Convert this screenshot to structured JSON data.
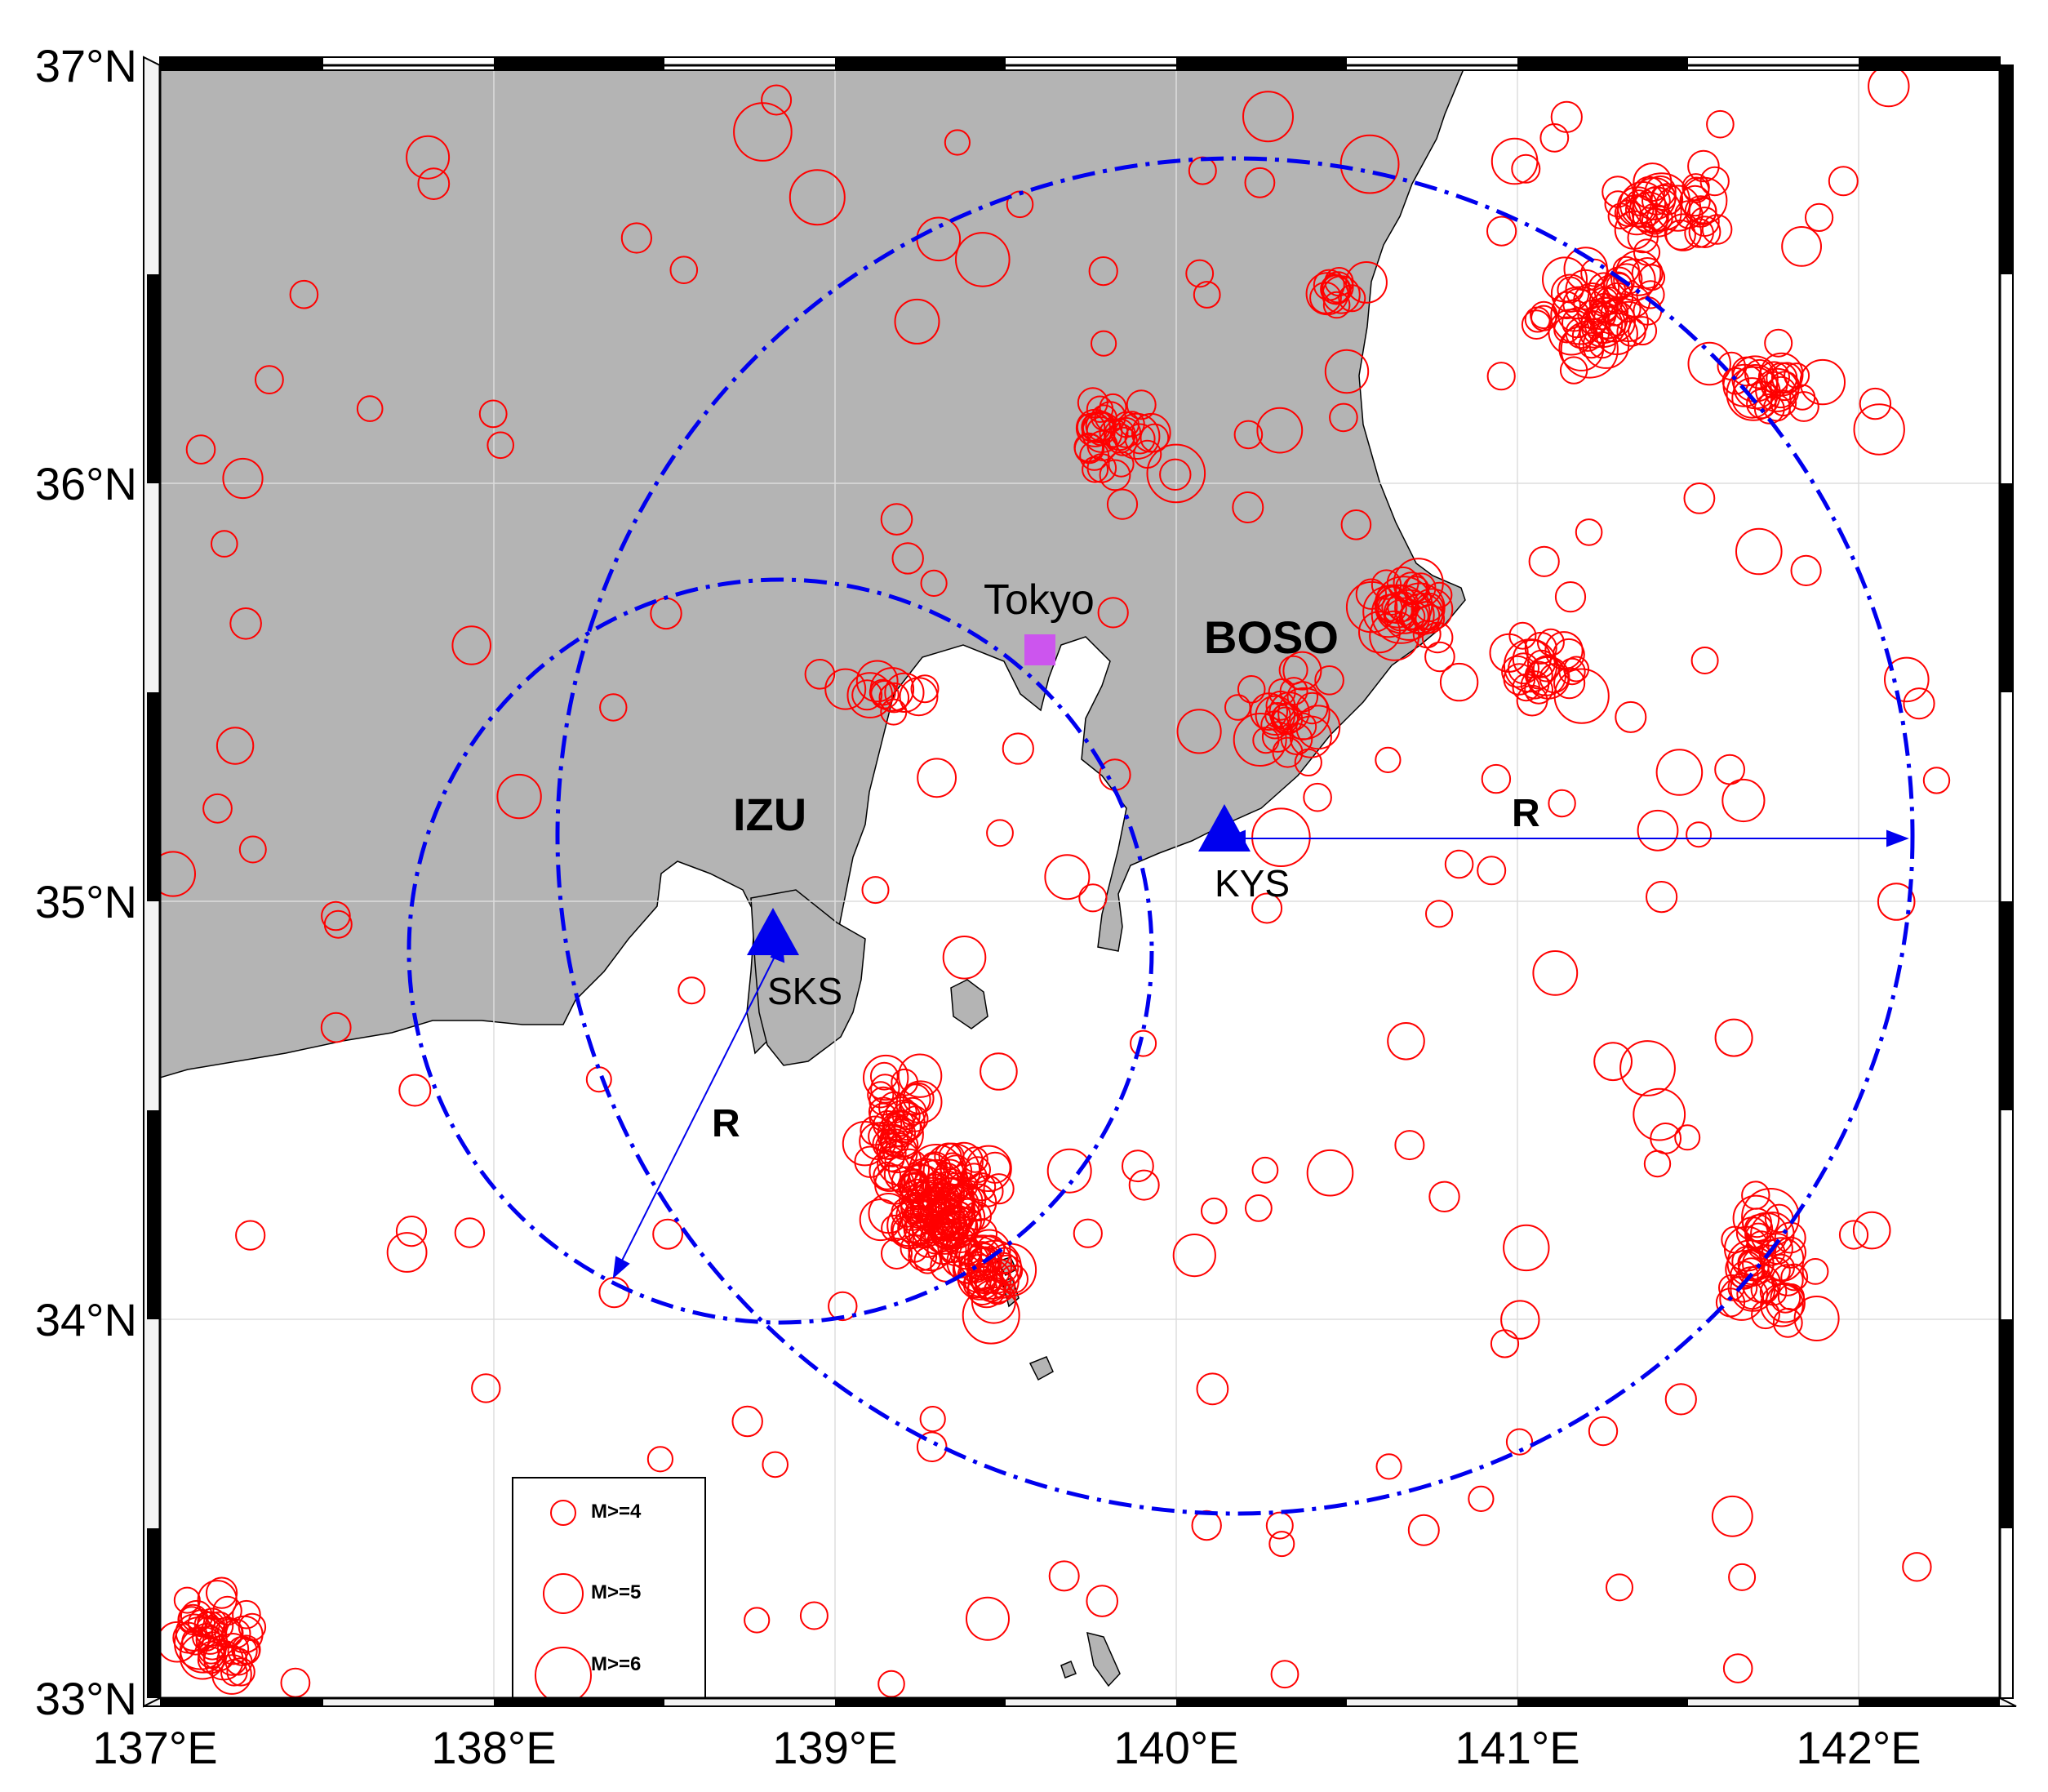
{
  "map": {
    "axis_labels": {
      "lat": [
        "37°N",
        "36°N",
        "35°N",
        "34°N",
        "33°N"
      ],
      "lon": [
        "137°E",
        "138°E",
        "139°E",
        "140°E",
        "141°E",
        "142°E"
      ]
    },
    "extent": {
      "lon": [
        137,
        142.5
      ],
      "lat": [
        33,
        37
      ]
    },
    "grid": true,
    "colors": {
      "land": "#b4b4b4",
      "sea": "#ffffff",
      "events": "#ff0000",
      "circles": "#0000ee",
      "station": "#0000ee",
      "tokyo_marker": "#cc55ee"
    },
    "places": {
      "tokyo": "Tokyo",
      "boso": "BOSO",
      "izu": "IZU"
    },
    "stations": [
      {
        "code": "SKS",
        "lon": 138.82,
        "lat": 34.93
      },
      {
        "code": "KYS",
        "lon": 140.15,
        "lat": 35.17
      }
    ],
    "radius_label": "R",
    "legend": {
      "items": [
        {
          "label": "M>=4",
          "magnitude": 4
        },
        {
          "label": "M>=5",
          "magnitude": 5
        },
        {
          "label": "M>=6",
          "magnitude": 6
        }
      ]
    }
  }
}
